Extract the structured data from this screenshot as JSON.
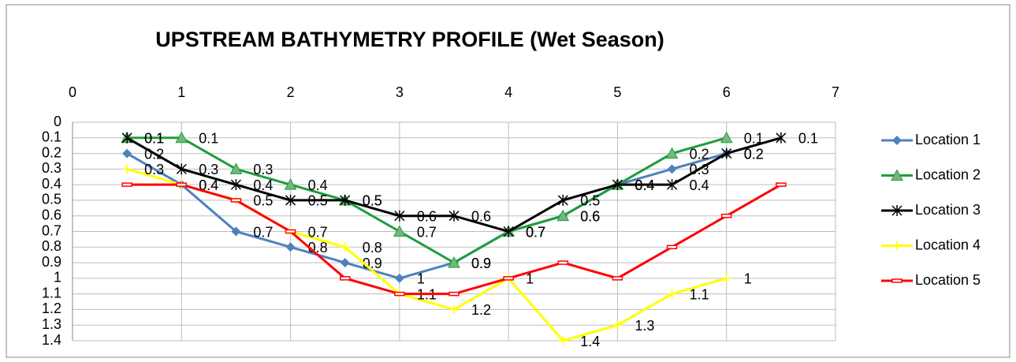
{
  "chart_data": {
    "type": "line",
    "title": "UPSTREAM BATHYMETRY PROFILE (Wet Season)",
    "x": [
      0.5,
      1,
      1.5,
      2,
      2.5,
      3,
      3.5,
      4,
      4.5,
      5,
      5.5,
      6,
      6.5
    ],
    "xlim": [
      0,
      7
    ],
    "xticks": [
      0,
      1,
      2,
      3,
      4,
      5,
      6,
      7
    ],
    "xaxis_position": "top",
    "ylim": [
      0,
      1.4
    ],
    "yticks": [
      0,
      0.1,
      0.2,
      0.3,
      0.4,
      0.5,
      0.6,
      0.7,
      0.8,
      0.9,
      1,
      1.1,
      1.2,
      1.3,
      1.4
    ],
    "y_inverted": true,
    "grid": true,
    "legend": "right",
    "series": [
      {
        "name": "Location 1",
        "color": "#4f81bd",
        "marker": "diamond",
        "data_labels": true,
        "values": [
          0.2,
          0.4,
          0.7,
          0.8,
          0.9,
          1,
          0.9,
          0.7,
          0.6,
          0.4,
          0.3,
          0.2,
          null
        ]
      },
      {
        "name": "Location 2",
        "color": "#1e9e3e",
        "marker": "triangle",
        "data_labels": true,
        "values": [
          0.1,
          0.1,
          0.3,
          0.4,
          0.5,
          0.7,
          0.9,
          0.7,
          0.6,
          0.4,
          0.2,
          0.1,
          null
        ]
      },
      {
        "name": "Location 3",
        "color": "#000000",
        "marker": "star",
        "data_labels": true,
        "values": [
          0.1,
          0.3,
          0.4,
          0.5,
          0.5,
          0.6,
          0.6,
          0.7,
          0.5,
          0.4,
          0.4,
          0.2,
          0.1
        ]
      },
      {
        "name": "Location 4",
        "color": "#ffff00",
        "marker": "plus",
        "data_labels": true,
        "values": [
          0.3,
          0.4,
          0.5,
          0.7,
          0.8,
          1.1,
          1.2,
          1,
          1.4,
          1.3,
          1.1,
          1,
          null
        ]
      },
      {
        "name": "Location 5",
        "color": "#ff0000",
        "marker": "dash",
        "data_labels": false,
        "values": [
          0.4,
          0.4,
          0.5,
          0.7,
          1,
          1.1,
          1.1,
          1,
          0.9,
          1,
          0.8,
          0.6,
          0.4
        ]
      }
    ]
  }
}
